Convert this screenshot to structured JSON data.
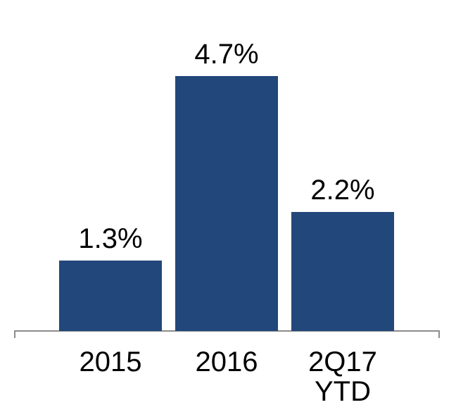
{
  "chart_data": {
    "type": "bar",
    "categories": [
      "2015",
      "2016",
      "2Q17 YTD"
    ],
    "values": [
      1.3,
      4.7,
      2.2
    ],
    "value_labels": [
      "1.3%",
      "4.7%",
      "2.2%"
    ],
    "color": "#22477a"
  }
}
